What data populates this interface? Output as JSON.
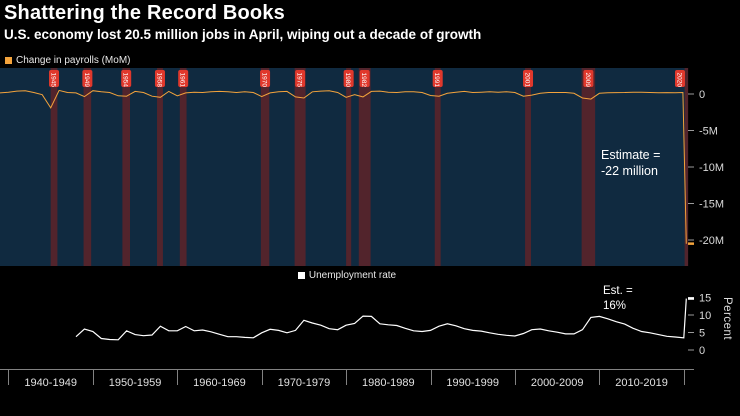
{
  "header": {
    "title": "Shattering the Record Books",
    "subtitle": "U.S. economy lost 20.5 million jobs in April, wiping out a decade of growth"
  },
  "payrolls": {
    "legend": "Change in payrolls (MoM)",
    "annotation_line1": "Estimate =",
    "annotation_line2": "-22 million"
  },
  "unemployment": {
    "legend": "Unemployment rate",
    "annotation_line1": "Est. =",
    "annotation_line2": "16%",
    "axis_label": "Percent"
  },
  "x_axis": {
    "labels": [
      "1940-1949",
      "1950-1959",
      "1960-1969",
      "1970-1979",
      "1980-1989",
      "1990-1999",
      "2000-2009",
      "2010-2019"
    ]
  },
  "chart_data": [
    {
      "type": "area",
      "title": "Change in payrolls (MoM)",
      "units": "millions of jobs, monthly change",
      "x_range": [
        1939,
        2020.5
      ],
      "y_ticks": [
        0,
        -5,
        -10,
        -15,
        -20
      ],
      "y_tick_labels": [
        "0",
        "-5M",
        "-10M",
        "-15M",
        "-20M"
      ],
      "years": [
        1939,
        1940,
        1941,
        1942,
        1943,
        1944,
        1945,
        1946,
        1947,
        1948,
        1949,
        1950,
        1951,
        1952,
        1953,
        1954,
        1955,
        1956,
        1957,
        1958,
        1959,
        1960,
        1961,
        1962,
        1963,
        1964,
        1965,
        1966,
        1967,
        1968,
        1969,
        1970,
        1971,
        1972,
        1973,
        1974,
        1975,
        1976,
        1977,
        1978,
        1979,
        1980,
        1981,
        1982,
        1983,
        1984,
        1985,
        1986,
        1987,
        1988,
        1989,
        1990,
        1991,
        1992,
        1993,
        1994,
        1995,
        1996,
        1997,
        1998,
        1999,
        2000,
        2001,
        2002,
        2003,
        2004,
        2005,
        2006,
        2007,
        2008,
        2009,
        2010,
        2011,
        2012,
        2013,
        2014,
        2015,
        2016,
        2017,
        2018,
        2019,
        2019.9,
        2020.3
      ],
      "values": [
        0.15,
        0.25,
        0.4,
        0.45,
        0.2,
        -0.1,
        -1.9,
        0.5,
        0.2,
        0.15,
        -0.35,
        0.45,
        0.3,
        0.2,
        -0.25,
        -0.3,
        0.35,
        0.2,
        -0.3,
        -0.45,
        0.35,
        -0.25,
        0.15,
        0.25,
        0.2,
        0.3,
        0.35,
        0.3,
        0.2,
        0.3,
        0.2,
        -0.35,
        0.15,
        0.3,
        0.35,
        -0.4,
        -0.55,
        0.3,
        0.4,
        0.45,
        0.2,
        -0.45,
        -0.1,
        -0.4,
        0.35,
        0.4,
        0.25,
        0.2,
        0.3,
        0.3,
        0.2,
        -0.2,
        -0.3,
        0.1,
        0.25,
        0.35,
        0.2,
        0.25,
        0.3,
        0.25,
        0.3,
        0.2,
        -0.3,
        -0.15,
        0.1,
        0.2,
        0.2,
        0.2,
        0.1,
        -0.55,
        -0.7,
        0.1,
        0.17,
        0.19,
        0.2,
        0.25,
        0.23,
        0.2,
        0.18,
        0.19,
        0.16,
        0.21,
        -20.5
      ],
      "final_point": {
        "date": "April 2020",
        "value": -20.5,
        "estimate_label": "Estimate = -22 million"
      },
      "recession_bands": [
        [
          1945.0,
          1945.8
        ],
        [
          1948.9,
          1949.8
        ],
        [
          1953.5,
          1954.4
        ],
        [
          1957.6,
          1958.3
        ],
        [
          1960.3,
          1961.1
        ],
        [
          1969.9,
          1970.9
        ],
        [
          1973.9,
          1975.2
        ],
        [
          1980.0,
          1980.6
        ],
        [
          1981.5,
          1982.9
        ],
        [
          1990.5,
          1991.2
        ],
        [
          2001.2,
          2001.9
        ],
        [
          2007.9,
          2009.5
        ],
        [
          2020.1,
          2020.5
        ]
      ],
      "recession_labels": [
        "1945",
        "1949",
        "1954",
        "1958",
        "1961",
        "1970",
        "1975",
        "1980",
        "1982",
        "1991",
        "2001",
        "2009",
        "2020"
      ],
      "colors": {
        "line": "#f3a33c",
        "plot_bg": "#102a40",
        "band": "#52242c",
        "badge": "#e0382c"
      }
    },
    {
      "type": "line",
      "title": "Unemployment rate",
      "ylabel": "Percent",
      "y_ticks": [
        15,
        10,
        5,
        0
      ],
      "ylim": [
        0,
        16.5
      ],
      "years": [
        1948,
        1949,
        1950,
        1951,
        1952,
        1953,
        1954,
        1955,
        1956,
        1957,
        1958,
        1959,
        1960,
        1961,
        1962,
        1963,
        1964,
        1965,
        1966,
        1967,
        1968,
        1969,
        1970,
        1971,
        1972,
        1973,
        1974,
        1975,
        1976,
        1977,
        1978,
        1979,
        1980,
        1981,
        1982,
        1983,
        1984,
        1985,
        1986,
        1987,
        1988,
        1989,
        1990,
        1991,
        1992,
        1993,
        1994,
        1995,
        1996,
        1997,
        1998,
        1999,
        2000,
        2001,
        2002,
        2003,
        2004,
        2005,
        2006,
        2007,
        2008,
        2009,
        2010,
        2011,
        2012,
        2013,
        2014,
        2015,
        2016,
        2017,
        2018,
        2019,
        2020,
        2020.3
      ],
      "values": [
        3.8,
        6.0,
        5.3,
        3.3,
        3.0,
        2.9,
        5.5,
        4.4,
        4.1,
        4.3,
        6.8,
        5.5,
        5.5,
        6.7,
        5.5,
        5.7,
        5.2,
        4.5,
        3.8,
        3.8,
        3.6,
        3.5,
        4.9,
        5.9,
        5.6,
        4.9,
        5.6,
        8.5,
        7.7,
        7.1,
        6.1,
        5.8,
        7.1,
        7.6,
        9.7,
        9.6,
        7.5,
        7.2,
        7.0,
        6.2,
        5.5,
        5.3,
        5.6,
        6.8,
        7.5,
        6.9,
        6.1,
        5.6,
        5.4,
        4.9,
        4.5,
        4.2,
        4.0,
        4.7,
        5.8,
        6.0,
        5.5,
        5.1,
        4.6,
        4.6,
        5.8,
        9.3,
        9.6,
        8.9,
        8.1,
        7.4,
        6.2,
        5.3,
        4.9,
        4.4,
        3.9,
        3.7,
        3.5,
        14.7
      ],
      "final_point": {
        "date": "April 2020",
        "value": 14.7,
        "estimate_label": "Est. = 16%"
      },
      "colors": {
        "line": "#ffffff"
      }
    }
  ]
}
